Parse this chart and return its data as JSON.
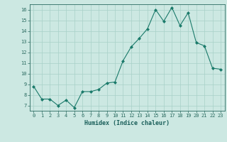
{
  "x": [
    0,
    1,
    2,
    3,
    4,
    5,
    6,
    7,
    8,
    9,
    10,
    11,
    12,
    13,
    14,
    15,
    16,
    17,
    18,
    19,
    20,
    21,
    22,
    23
  ],
  "y": [
    8.8,
    7.6,
    7.6,
    7.0,
    7.5,
    6.8,
    8.3,
    8.3,
    8.5,
    9.1,
    9.2,
    11.2,
    12.5,
    13.3,
    14.2,
    16.0,
    14.9,
    16.2,
    14.5,
    15.7,
    12.9,
    12.6,
    10.5,
    10.4
  ],
  "xlabel": "Humidex (Indice chaleur)",
  "xlim": [
    -0.5,
    23.5
  ],
  "ylim": [
    6.5,
    16.5
  ],
  "yticks": [
    7,
    8,
    9,
    10,
    11,
    12,
    13,
    14,
    15,
    16
  ],
  "xticks": [
    0,
    1,
    2,
    3,
    4,
    5,
    6,
    7,
    8,
    9,
    10,
    11,
    12,
    13,
    14,
    15,
    16,
    17,
    18,
    19,
    20,
    21,
    22,
    23
  ],
  "line_color": "#1a7a6a",
  "marker_color": "#1a7a6a",
  "bg_color": "#cce8e2",
  "grid_color": "#a8d0c8",
  "axes_color": "#2a6a60",
  "label_color": "#1a5f5a",
  "font_family": "monospace",
  "tick_fontsize": 5.0,
  "xlabel_fontsize": 6.0
}
